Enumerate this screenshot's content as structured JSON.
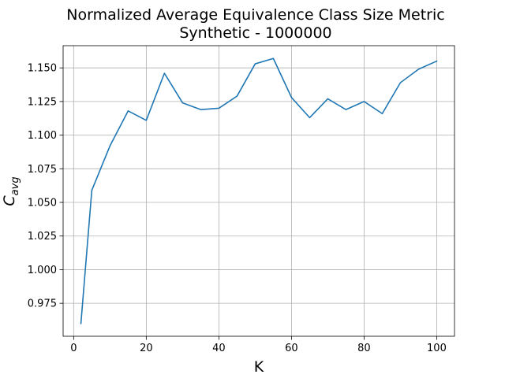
{
  "chart_data": {
    "type": "line",
    "title_line1": "Normalized Average Equivalence Class Size Metric",
    "title_line2": "Synthetic - 1000000",
    "xlabel": "K",
    "ylabel_main": "C",
    "ylabel_sub": "avg",
    "xlim": [
      -2.9,
      104.9
    ],
    "ylim": [
      0.9505,
      1.1665
    ],
    "x_ticks": [
      0,
      20,
      40,
      60,
      80,
      100
    ],
    "x_tick_labels": [
      "0",
      "20",
      "40",
      "60",
      "80",
      "100"
    ],
    "y_ticks": [
      0.975,
      1.0,
      1.025,
      1.05,
      1.075,
      1.1,
      1.125,
      1.15
    ],
    "y_tick_labels": [
      "0.975",
      "1.000",
      "1.025",
      "1.050",
      "1.075",
      "1.100",
      "1.125",
      "1.150"
    ],
    "grid": true,
    "series": [
      {
        "color": "#1f77b4",
        "x": [
          2,
          5,
          10,
          15,
          20,
          25,
          30,
          35,
          40,
          45,
          50,
          55,
          60,
          65,
          70,
          75,
          80,
          85,
          90,
          95,
          100
        ],
        "values": [
          0.96,
          1.059,
          1.092,
          1.118,
          1.111,
          1.146,
          1.124,
          1.119,
          1.12,
          1.129,
          1.153,
          1.157,
          1.128,
          1.113,
          1.127,
          1.119,
          1.125,
          1.116,
          1.139,
          1.149,
          1.155
        ]
      }
    ]
  }
}
